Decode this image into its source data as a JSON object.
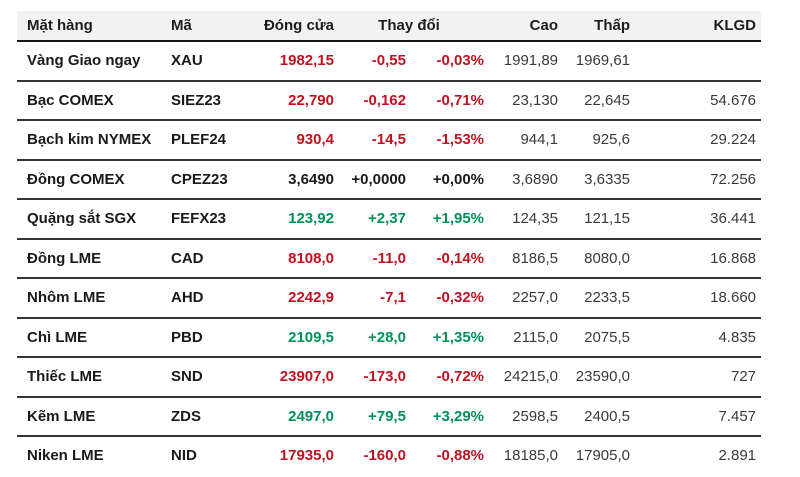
{
  "colors": {
    "down": "#c11221",
    "up": "#00915a",
    "flat": "#1a1a1a",
    "header_bg": "#f2f2f2",
    "row_border": "#353535"
  },
  "table": {
    "headers": {
      "item": "Mặt hàng",
      "code": "Mã",
      "close": "Đóng cửa",
      "change": "Thay đổi",
      "high": "Cao",
      "low": "Thấp",
      "volume": "KLGD"
    },
    "rows": [
      {
        "item": "Vàng Giao ngay",
        "code": "XAU",
        "close": "1982,15",
        "change": "-0,55",
        "change_pct": "-0,03%",
        "high": "1991,89",
        "low": "1969,61",
        "volume": "",
        "trend": "down"
      },
      {
        "item": "Bạc COMEX",
        "code": "SIEZ23",
        "close": "22,790",
        "change": "-0,162",
        "change_pct": "-0,71%",
        "high": "23,130",
        "low": "22,645",
        "volume": "54.676",
        "trend": "down"
      },
      {
        "item": "Bạch kim NYMEX",
        "code": "PLEF24",
        "close": "930,4",
        "change": "-14,5",
        "change_pct": "-1,53%",
        "high": "944,1",
        "low": "925,6",
        "volume": "29.224",
        "trend": "down"
      },
      {
        "item": "Đồng COMEX",
        "code": "CPEZ23",
        "close": "3,6490",
        "change": "+0,0000",
        "change_pct": "+0,00%",
        "high": "3,6890",
        "low": "3,6335",
        "volume": "72.256",
        "trend": "flat"
      },
      {
        "item": "Quặng sắt SGX",
        "code": "FEFX23",
        "close": "123,92",
        "change": "+2,37",
        "change_pct": "+1,95%",
        "high": "124,35",
        "low": "121,15",
        "volume": "36.441",
        "trend": "up"
      },
      {
        "item": "Đồng LME",
        "code": "CAD",
        "close": "8108,0",
        "change": "-11,0",
        "change_pct": "-0,14%",
        "high": "8186,5",
        "low": "8080,0",
        "volume": "16.868",
        "trend": "down"
      },
      {
        "item": "Nhôm LME",
        "code": "AHD",
        "close": "2242,9",
        "change": "-7,1",
        "change_pct": "-0,32%",
        "high": "2257,0",
        "low": "2233,5",
        "volume": "18.660",
        "trend": "down"
      },
      {
        "item": "Chì LME",
        "code": "PBD",
        "close": "2109,5",
        "change": "+28,0",
        "change_pct": "+1,35%",
        "high": "2115,0",
        "low": "2075,5",
        "volume": "4.835",
        "trend": "up"
      },
      {
        "item": "Thiếc LME",
        "code": "SND",
        "close": "23907,0",
        "change": "-173,0",
        "change_pct": "-0,72%",
        "high": "24215,0",
        "low": "23590,0",
        "volume": "727",
        "trend": "down"
      },
      {
        "item": "Kẽm LME",
        "code": "ZDS",
        "close": "2497,0",
        "change": "+79,5",
        "change_pct": "+3,29%",
        "high": "2598,5",
        "low": "2400,5",
        "volume": "7.457",
        "trend": "up"
      },
      {
        "item": "Niken LME",
        "code": "NID",
        "close": "17935,0",
        "change": "-160,0",
        "change_pct": "-0,88%",
        "high": "18185,0",
        "low": "17905,0",
        "volume": "2.891",
        "trend": "down"
      }
    ]
  }
}
